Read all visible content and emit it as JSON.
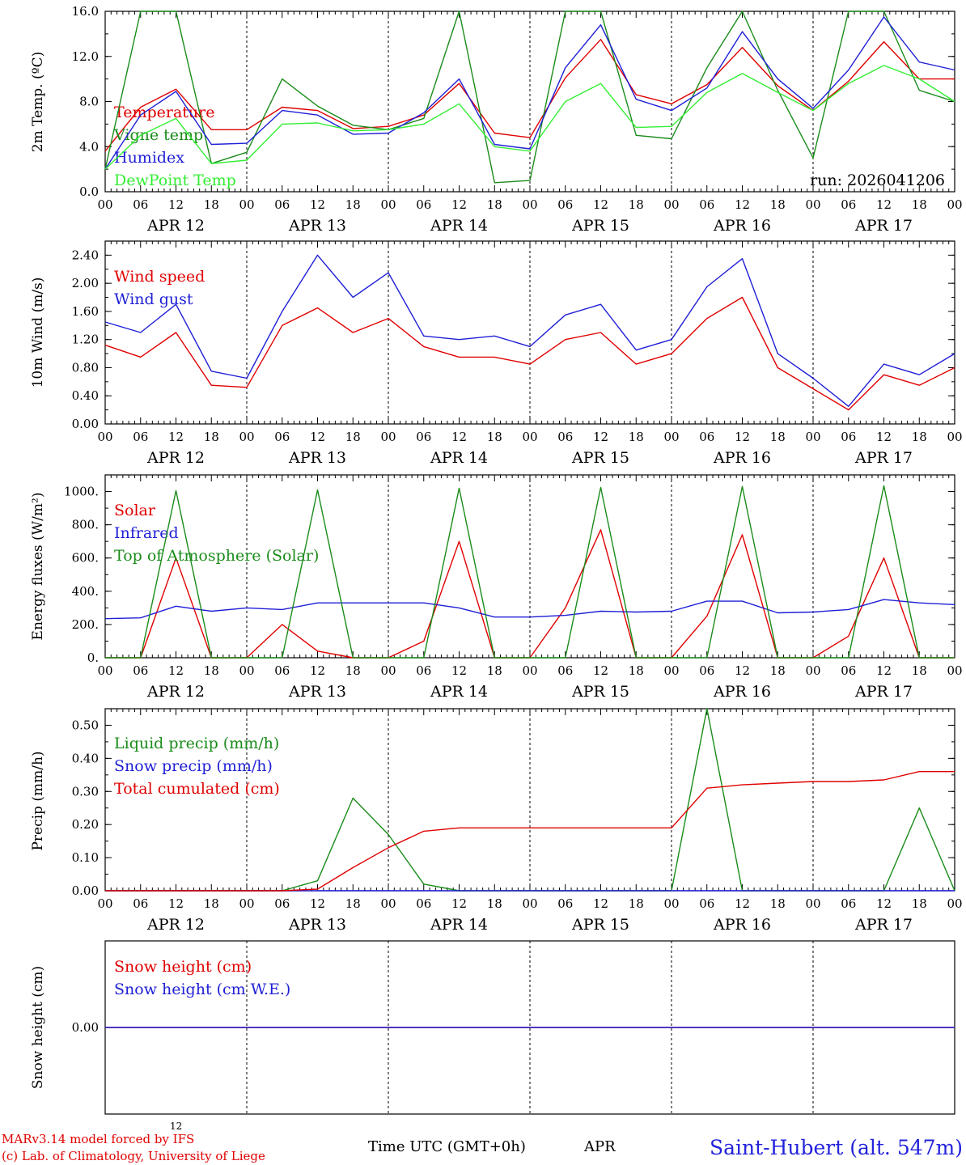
{
  "footer": {
    "model_line": "MARv3.14 model forced by IFS",
    "credit_line": "(c) Lab. of Climatology, University of Liege",
    "time_axis": "Time UTC (GMT+0h)",
    "month": "APR",
    "stray_12": "12",
    "station": "Saint-Hubert (alt. 547m)"
  },
  "time_axis": {
    "hour_ticks": [
      "00",
      "06",
      "12",
      "18",
      "00",
      "06",
      "12",
      "18",
      "00",
      "06",
      "12",
      "18",
      "00",
      "06",
      "12",
      "18",
      "00",
      "06",
      "12",
      "18",
      "00",
      "06",
      "12",
      "18",
      "00"
    ],
    "days": [
      "APR 12",
      "APR 13",
      "APR 14",
      "APR 15",
      "APR 16",
      "APR 17"
    ]
  },
  "colors": {
    "red": "#e00000",
    "green": "#1a8c1a",
    "blue": "#1f1fd6",
    "lightgreen": "#33ee33"
  },
  "chart_data": [
    {
      "type": "line",
      "ylabel": "2m Temp. (ºC)",
      "ylim": [
        0,
        16
      ],
      "yticks": [
        "0.0",
        "4.0",
        "8.0",
        "12.0",
        "16.0"
      ],
      "annotation": "run: 2026041206",
      "x_hours": [
        0,
        6,
        12,
        18,
        24,
        30,
        36,
        42,
        48,
        54,
        60,
        66,
        72,
        78,
        84,
        90,
        96,
        102,
        108,
        114,
        120,
        126,
        132,
        138,
        144
      ],
      "series": [
        {
          "name": "Temperature",
          "color": "red",
          "values": [
            3.6,
            7.5,
            9.1,
            5.5,
            5.5,
            7.5,
            7.2,
            5.6,
            5.8,
            6.8,
            9.6,
            5.2,
            4.8,
            10.1,
            13.5,
            8.6,
            7.8,
            9.5,
            12.8,
            9.4,
            7.2,
            9.8,
            13.3,
            10.0,
            10.0
          ]
        },
        {
          "name": "Vigne temp",
          "color": "green",
          "values": [
            2.0,
            16,
            16,
            2.5,
            3.5,
            10,
            7.6,
            5.9,
            5.5,
            6.5,
            16,
            0.8,
            1.0,
            16,
            16,
            5.0,
            4.7,
            11,
            16,
            9.0,
            3.0,
            16,
            16,
            9.0,
            8.0
          ]
        },
        {
          "name": "Humidex",
          "color": "blue",
          "values": [
            2.0,
            6.8,
            8.9,
            4.2,
            4.3,
            7.2,
            6.8,
            5.1,
            5.2,
            7.0,
            10.0,
            4.2,
            3.8,
            11.0,
            14.8,
            8.2,
            7.2,
            9.2,
            14.2,
            10.0,
            7.4,
            10.8,
            15.5,
            11.5,
            10.8
          ]
        },
        {
          "name": "DewPoint Temp",
          "color": "lightgreen",
          "values": [
            2.0,
            5.0,
            6.5,
            2.5,
            2.8,
            6.0,
            6.1,
            5.4,
            5.5,
            6.0,
            7.8,
            4.0,
            3.6,
            8.0,
            9.6,
            5.7,
            5.8,
            8.8,
            10.5,
            8.8,
            7.2,
            9.6,
            11.2,
            10.0,
            8.0
          ]
        }
      ]
    },
    {
      "type": "line",
      "ylabel": "10m Wind (m/s)",
      "ylim": [
        0,
        2.6
      ],
      "yticks": [
        "0.00",
        "0.40",
        "0.80",
        "1.20",
        "1.60",
        "2.00",
        "2.40"
      ],
      "x_hours": [
        0,
        6,
        12,
        18,
        24,
        30,
        36,
        42,
        48,
        54,
        60,
        66,
        72,
        78,
        84,
        90,
        96,
        102,
        108,
        114,
        120,
        126,
        132,
        138,
        144
      ],
      "series": [
        {
          "name": "Wind speed",
          "color": "red",
          "values": [
            1.12,
            0.95,
            1.3,
            0.55,
            0.52,
            1.4,
            1.65,
            1.3,
            1.5,
            1.1,
            0.95,
            0.95,
            0.85,
            1.2,
            1.3,
            0.85,
            1.0,
            1.5,
            1.8,
            0.8,
            0.5,
            0.2,
            0.7,
            0.55,
            0.8
          ]
        },
        {
          "name": "Wind gust",
          "color": "blue",
          "values": [
            1.45,
            1.3,
            1.7,
            0.75,
            0.65,
            1.6,
            2.4,
            1.8,
            2.15,
            1.25,
            1.2,
            1.25,
            1.1,
            1.55,
            1.7,
            1.05,
            1.2,
            1.95,
            2.35,
            1.0,
            0.65,
            0.25,
            0.85,
            0.7,
            1.0
          ]
        }
      ]
    },
    {
      "type": "line",
      "ylabel": "Energy fluxes (W/m²)",
      "ylim": [
        0,
        1100
      ],
      "yticks": [
        "0.",
        "200.",
        "400.",
        "600.",
        "800.",
        "1000."
      ],
      "x_hours": [
        0,
        6,
        12,
        18,
        24,
        30,
        36,
        42,
        48,
        54,
        60,
        66,
        72,
        78,
        84,
        90,
        96,
        102,
        108,
        114,
        120,
        126,
        132,
        138,
        144
      ],
      "series": [
        {
          "name": "Solar",
          "color": "red",
          "values": [
            0,
            0,
            600,
            0,
            0,
            200,
            40,
            0,
            0,
            100,
            700,
            0,
            0,
            300,
            770,
            0,
            0,
            250,
            740,
            0,
            0,
            130,
            600,
            0,
            0
          ]
        },
        {
          "name": "Infrared",
          "color": "blue",
          "values": [
            235,
            240,
            310,
            280,
            300,
            290,
            330,
            330,
            330,
            330,
            300,
            245,
            245,
            255,
            280,
            275,
            280,
            340,
            340,
            270,
            275,
            290,
            350,
            330,
            320
          ]
        },
        {
          "name": "Top of Atmosphere (Solar)",
          "color": "green",
          "values": [
            0,
            0,
            1005,
            0,
            0,
            0,
            1010,
            0,
            0,
            0,
            1020,
            0,
            0,
            0,
            1025,
            0,
            0,
            0,
            1030,
            0,
            0,
            0,
            1035,
            0,
            0
          ]
        }
      ]
    },
    {
      "type": "line",
      "ylabel": "Precip (mm/h)",
      "ylim": [
        0,
        0.55
      ],
      "yticks": [
        "0.00",
        "0.10",
        "0.20",
        "0.30",
        "0.40",
        "0.50"
      ],
      "x_hours": [
        0,
        6,
        12,
        18,
        24,
        30,
        36,
        42,
        48,
        54,
        60,
        66,
        72,
        78,
        84,
        90,
        96,
        102,
        108,
        114,
        120,
        126,
        132,
        138,
        144
      ],
      "series": [
        {
          "name": "Liquid precip (mm/h)",
          "color": "green",
          "values": [
            0,
            0,
            0,
            0,
            0,
            0,
            0.03,
            0.28,
            0.17,
            0.02,
            0,
            0,
            0,
            0,
            0,
            0,
            0,
            0.55,
            0,
            0,
            0,
            0,
            0,
            0.25,
            0
          ]
        },
        {
          "name": "Snow precip (mm/h)",
          "color": "blue",
          "values": [
            0,
            0,
            0,
            0,
            0,
            0,
            0,
            0,
            0,
            0,
            0,
            0,
            0,
            0,
            0,
            0,
            0,
            0,
            0,
            0,
            0,
            0,
            0,
            0,
            0
          ]
        },
        {
          "name": "Total cumulated (cm)",
          "color": "red",
          "values": [
            0,
            0,
            0,
            0,
            0,
            0,
            0.005,
            0.07,
            0.13,
            0.18,
            0.19,
            0.19,
            0.19,
            0.19,
            0.19,
            0.19,
            0.19,
            0.31,
            0.32,
            0.325,
            0.33,
            0.33,
            0.335,
            0.36,
            0.36
          ]
        }
      ]
    },
    {
      "type": "line",
      "ylabel": "Snow height (cm)",
      "ylim": [
        -0.5,
        0.5
      ],
      "yticks": [
        "0.00"
      ],
      "x_hours": [
        0,
        144
      ],
      "series": [
        {
          "name": "Snow height (cm)",
          "color": "red",
          "values": [
            0,
            0
          ]
        },
        {
          "name": "Snow height (cm W.E.)",
          "color": "blue",
          "values": [
            0,
            0
          ]
        }
      ]
    }
  ]
}
